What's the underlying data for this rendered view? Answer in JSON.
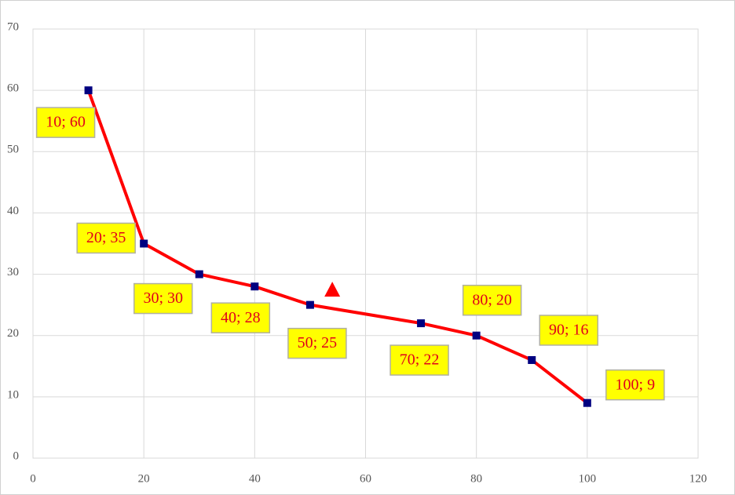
{
  "chart_data": {
    "type": "line",
    "x": [
      10,
      20,
      30,
      40,
      50,
      70,
      80,
      90,
      100
    ],
    "series": [
      {
        "color": "#ff0000",
        "marker_color": "#000080",
        "values": [
          60,
          35,
          30,
          28,
          25,
          22,
          20,
          16,
          9
        ],
        "value_labels": [
          "10; 60",
          "20; 35",
          "30; 30",
          "40; 28",
          "50; 25",
          "70; 22",
          "80; 20",
          "90; 16",
          "100; 9"
        ]
      }
    ],
    "markers": [
      {
        "x": 54,
        "y": 27.5,
        "shape": "triangle",
        "color": "#ff0000"
      }
    ],
    "xlim": [
      0,
      120
    ],
    "xticks": [
      0,
      20,
      40,
      60,
      80,
      100,
      120
    ],
    "ylim": [
      0,
      70
    ],
    "yticks": [
      0,
      10,
      20,
      30,
      40,
      50,
      60,
      70
    ],
    "grid": true
  }
}
